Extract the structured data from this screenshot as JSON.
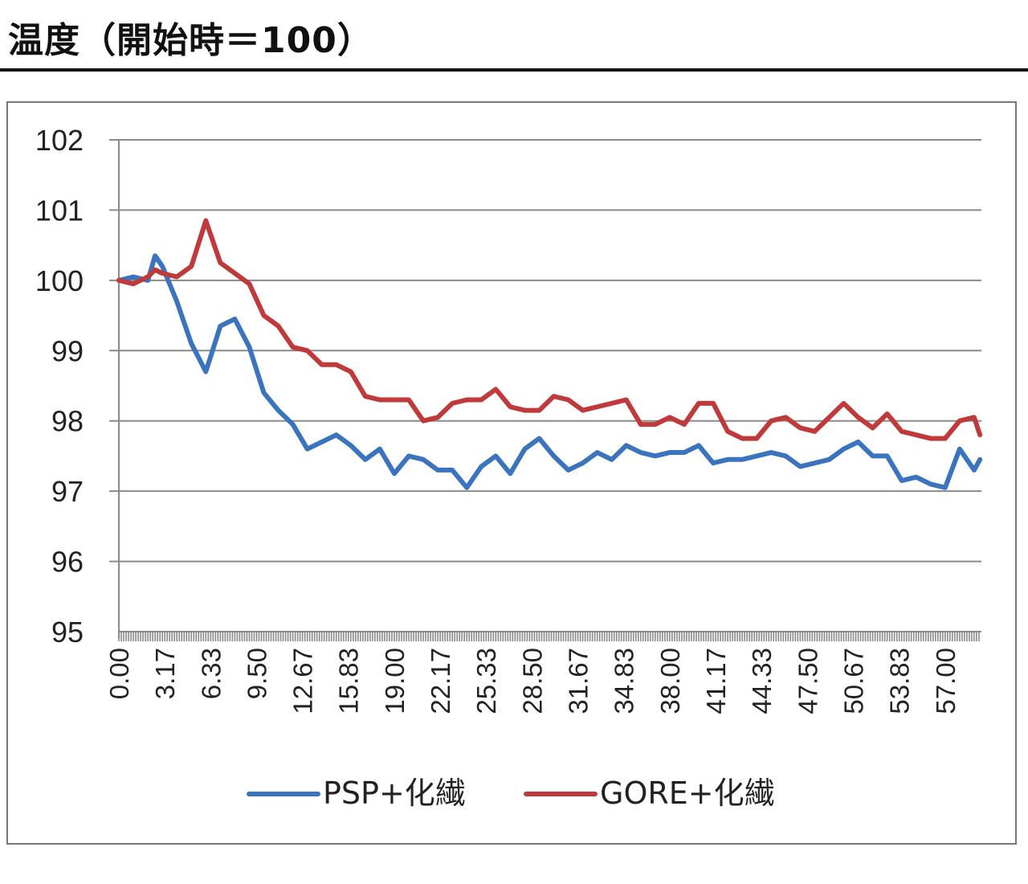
{
  "title": "温度（開始時＝100）",
  "chart_data": {
    "type": "line",
    "title": "温度（開始時＝100）",
    "xlabel": "",
    "ylabel": "",
    "ylim": [
      95,
      102
    ],
    "xlim": [
      0,
      59.4
    ],
    "yticks": [
      "95",
      "96",
      "97",
      "98",
      "99",
      "100",
      "101",
      "102"
    ],
    "xticks": [
      "0.00",
      "3.17",
      "6.33",
      "9.50",
      "12.67",
      "15.83",
      "19.00",
      "22.17",
      "25.33",
      "28.50",
      "31.67",
      "34.83",
      "38.00",
      "41.17",
      "44.33",
      "47.50",
      "50.67",
      "53.83",
      "57.00"
    ],
    "grid": true,
    "legend_position": "bottom",
    "x": [
      0,
      1,
      2,
      2.5,
      3,
      4,
      5,
      6,
      7,
      8,
      9,
      10,
      11,
      12,
      13,
      14,
      15,
      16,
      17,
      18,
      19,
      20,
      21,
      22,
      23,
      24,
      25,
      26,
      27,
      28,
      29,
      30,
      31,
      32,
      33,
      34,
      35,
      36,
      37,
      38,
      39,
      40,
      41,
      42,
      43,
      44,
      45,
      46,
      47,
      48,
      49,
      50,
      51,
      52,
      53,
      54,
      55,
      56,
      57,
      58,
      59,
      59.4
    ],
    "series": [
      {
        "name": "PSP+化繊",
        "color": "#3b74be",
        "values": [
          100.0,
          100.05,
          100.0,
          100.35,
          100.2,
          99.7,
          99.1,
          98.7,
          99.35,
          99.45,
          99.05,
          98.4,
          98.15,
          97.95,
          97.6,
          97.7,
          97.8,
          97.65,
          97.45,
          97.6,
          97.25,
          97.5,
          97.45,
          97.3,
          97.3,
          97.05,
          97.35,
          97.5,
          97.25,
          97.6,
          97.75,
          97.5,
          97.3,
          97.4,
          97.55,
          97.45,
          97.65,
          97.55,
          97.5,
          97.55,
          97.55,
          97.65,
          97.4,
          97.45,
          97.45,
          97.5,
          97.55,
          97.5,
          97.35,
          97.4,
          97.45,
          97.6,
          97.7,
          97.5,
          97.5,
          97.15,
          97.2,
          97.1,
          97.05,
          97.6,
          97.3,
          97.45
        ]
      },
      {
        "name": "GORE+化繊",
        "color": "#c0393b",
        "values": [
          100.0,
          99.95,
          100.05,
          100.15,
          100.1,
          100.05,
          100.2,
          100.85,
          100.25,
          100.1,
          99.95,
          99.5,
          99.35,
          99.05,
          99.0,
          98.8,
          98.8,
          98.7,
          98.35,
          98.3,
          98.3,
          98.3,
          98.0,
          98.05,
          98.25,
          98.3,
          98.3,
          98.45,
          98.2,
          98.15,
          98.15,
          98.35,
          98.3,
          98.15,
          98.2,
          98.25,
          98.3,
          97.95,
          97.95,
          98.05,
          97.95,
          98.25,
          98.25,
          97.85,
          97.75,
          97.75,
          98.0,
          98.05,
          97.9,
          97.85,
          98.05,
          98.25,
          98.05,
          97.9,
          98.1,
          97.85,
          97.8,
          97.75,
          97.75,
          98.0,
          98.05,
          97.8
        ]
      }
    ]
  }
}
